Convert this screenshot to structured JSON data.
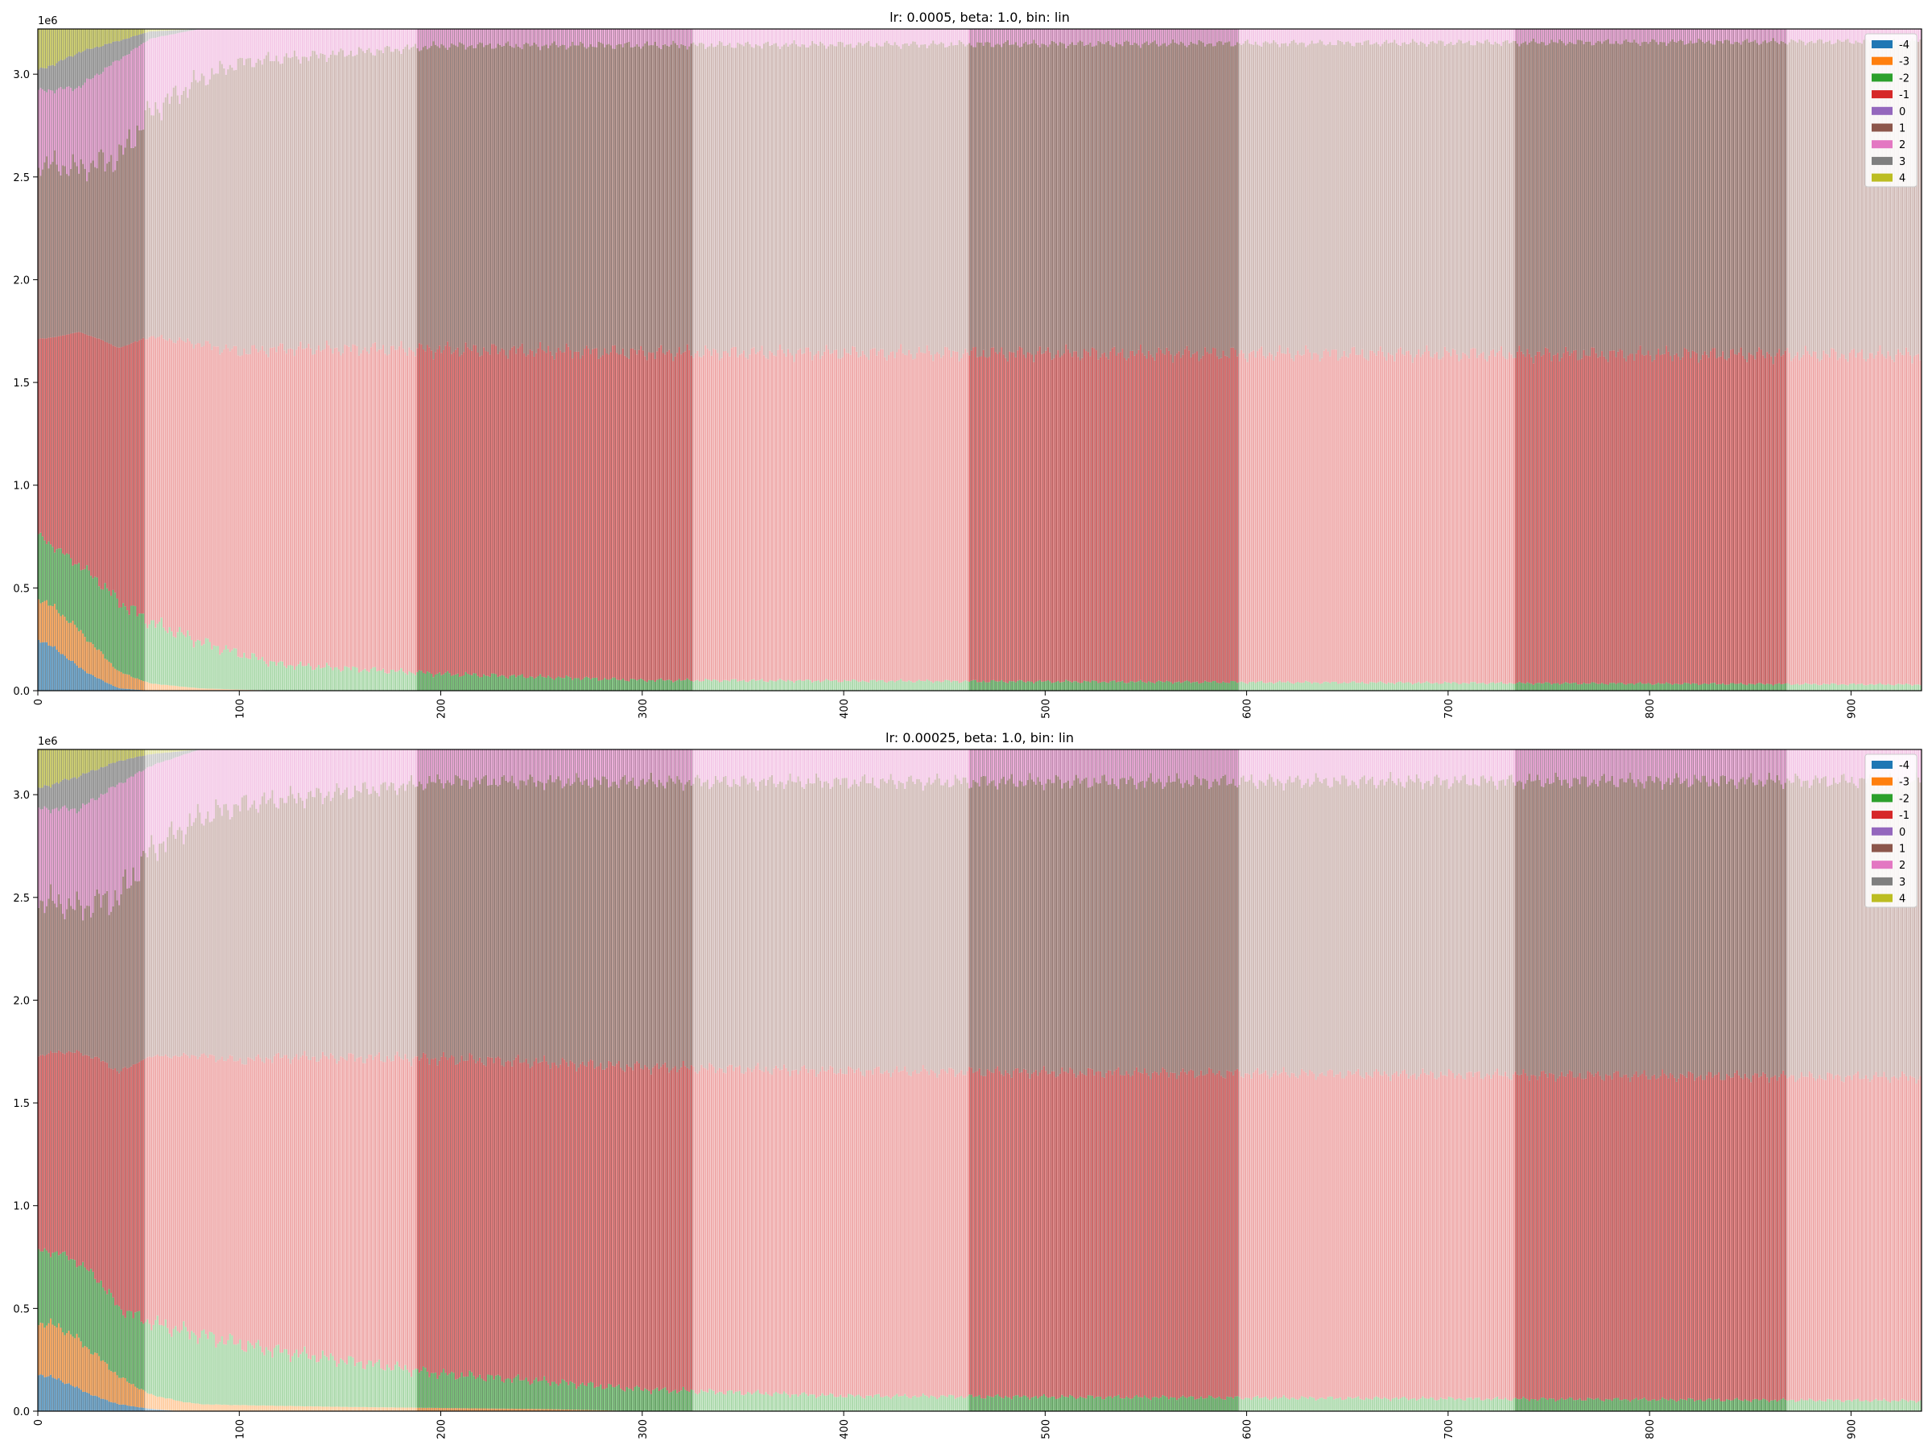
{
  "chart_data": [
    {
      "type": "bar",
      "stacked": true,
      "title": "lr: 0.0005, beta: 1.0, bin: lin",
      "ylabel_offset": "1e6",
      "xlim": [
        0,
        935
      ],
      "ylim": [
        0,
        3.22
      ],
      "xticks": [
        0,
        100,
        200,
        300,
        400,
        500,
        600,
        700,
        800,
        900
      ],
      "yticks": [
        "0.0",
        "0.5",
        "1.0",
        "1.5",
        "2.0",
        "2.5",
        "3.0"
      ],
      "legend": {
        "placement": "top-right",
        "labels": [
          "-4",
          "-3",
          "-2",
          "-1",
          "0",
          "1",
          "2",
          "3",
          "4"
        ]
      },
      "series_colors": [
        "#1f77b4",
        "#ff7f0e",
        "#2ca02c",
        "#d62728",
        "#9467bd",
        "#8c564b",
        "#e377c2",
        "#7f7f7f",
        "#bcbd22"
      ],
      "total": 3.22,
      "num_bars": 935,
      "dark_x_ranges": [
        [
          0,
          53
        ],
        [
          188,
          325
        ],
        [
          462,
          596
        ],
        [
          733,
          868
        ]
      ],
      "series": [
        {
          "name": "-4",
          "x": [
            0,
            10,
            20,
            30,
            40,
            55
          ],
          "values": [
            0.25,
            0.18,
            0.1,
            0.05,
            0.01,
            0
          ]
        },
        {
          "name": "-3",
          "x": [
            0,
            10,
            20,
            30,
            40,
            55,
            80,
            120
          ],
          "values": [
            0.2,
            0.18,
            0.16,
            0.12,
            0.07,
            0.03,
            0.01,
            0
          ]
        },
        {
          "name": "-2",
          "x": [
            0,
            10,
            20,
            30,
            40,
            55,
            80,
            120,
            200,
            300,
            935
          ],
          "values": [
            0.3,
            0.28,
            0.28,
            0.3,
            0.3,
            0.25,
            0.2,
            0.12,
            0.08,
            0.05,
            0.03
          ]
        },
        {
          "name": "-1",
          "x": [
            0,
            20,
            55,
            120,
            200,
            935
          ],
          "values": [
            0.95,
            1.0,
            1.15,
            1.45,
            1.55,
            1.6
          ]
        },
        {
          "name": "0",
          "x": [
            0,
            935
          ],
          "values": [
            0,
            0
          ]
        },
        {
          "name": "1",
          "x": [
            0,
            20,
            55,
            100,
            200,
            935
          ],
          "values": [
            0.85,
            0.7,
            0.9,
            1.3,
            1.45,
            1.52
          ]
        },
        {
          "name": "2",
          "x": [
            0,
            20,
            40,
            55,
            100,
            200,
            935
          ],
          "values": [
            0.35,
            0.35,
            0.42,
            0.3,
            0.15,
            0.08,
            0.06
          ]
        },
        {
          "name": "3",
          "x": [
            0,
            20,
            40,
            55,
            80
          ],
          "values": [
            0.1,
            0.15,
            0.08,
            0.03,
            0
          ]
        },
        {
          "name": "4",
          "x": [
            0,
            20,
            40,
            55,
            80
          ],
          "values": [
            0.2,
            0.1,
            0.05,
            0.01,
            0
          ]
        }
      ]
    },
    {
      "type": "bar",
      "stacked": true,
      "title": "lr: 0.00025, beta: 1.0, bin: lin",
      "ylabel_offset": "1e6",
      "xlim": [
        0,
        935
      ],
      "ylim": [
        0,
        3.22
      ],
      "xticks": [
        0,
        100,
        200,
        300,
        400,
        500,
        600,
        700,
        800,
        900
      ],
      "yticks": [
        "0.0",
        "0.5",
        "1.0",
        "1.5",
        "2.0",
        "2.5",
        "3.0"
      ],
      "legend": {
        "placement": "top-right",
        "labels": [
          "-4",
          "-3",
          "-2",
          "-1",
          "0",
          "1",
          "2",
          "3",
          "4"
        ]
      },
      "series_colors": [
        "#1f77b4",
        "#ff7f0e",
        "#2ca02c",
        "#d62728",
        "#9467bd",
        "#8c564b",
        "#e377c2",
        "#7f7f7f",
        "#bcbd22"
      ],
      "total": 3.22,
      "num_bars": 935,
      "dark_x_ranges": [
        [
          0,
          53
        ],
        [
          188,
          325
        ],
        [
          462,
          596
        ],
        [
          733,
          868
        ]
      ],
      "series": [
        {
          "name": "-4",
          "x": [
            0,
            10,
            20,
            30,
            40,
            55,
            70
          ],
          "values": [
            0.18,
            0.15,
            0.1,
            0.06,
            0.03,
            0.01,
            0
          ]
        },
        {
          "name": "-3",
          "x": [
            0,
            10,
            20,
            30,
            40,
            55,
            80,
            150,
            250,
            300
          ],
          "values": [
            0.25,
            0.25,
            0.22,
            0.18,
            0.12,
            0.06,
            0.03,
            0.02,
            0.01,
            0
          ]
        },
        {
          "name": "-2",
          "x": [
            0,
            10,
            20,
            30,
            40,
            55,
            80,
            120,
            200,
            300,
            400,
            935
          ],
          "values": [
            0.35,
            0.35,
            0.35,
            0.35,
            0.3,
            0.3,
            0.3,
            0.25,
            0.16,
            0.1,
            0.07,
            0.05
          ]
        },
        {
          "name": "-1",
          "x": [
            0,
            20,
            55,
            120,
            200,
            935
          ],
          "values": [
            0.95,
            0.95,
            1.1,
            1.35,
            1.48,
            1.55
          ]
        },
        {
          "name": "0",
          "x": [
            0,
            935
          ],
          "values": [
            0,
            0
          ]
        },
        {
          "name": "1",
          "x": [
            0,
            20,
            55,
            100,
            200,
            935
          ],
          "values": [
            0.75,
            0.65,
            0.85,
            1.15,
            1.3,
            1.42
          ]
        },
        {
          "name": "2",
          "x": [
            0,
            20,
            40,
            55,
            100,
            200,
            935
          ],
          "values": [
            0.45,
            0.45,
            0.5,
            0.35,
            0.25,
            0.15,
            0.15
          ]
        },
        {
          "name": "3",
          "x": [
            0,
            20,
            40,
            55,
            80
          ],
          "values": [
            0.1,
            0.15,
            0.1,
            0.05,
            0
          ]
        },
        {
          "name": "4",
          "x": [
            0,
            20,
            40,
            55,
            80
          ],
          "values": [
            0.19,
            0.12,
            0.05,
            0.02,
            0
          ]
        }
      ]
    }
  ]
}
